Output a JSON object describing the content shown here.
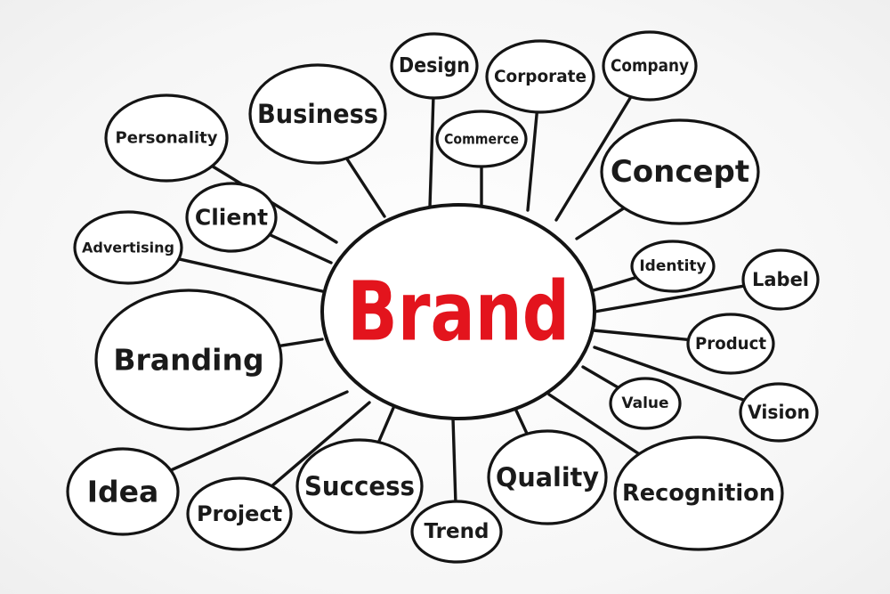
{
  "center": {
    "label": "Brand",
    "color": "#e3141d"
  },
  "nodes": [
    {
      "id": "design",
      "label": "Design"
    },
    {
      "id": "corporate",
      "label": "Corporate"
    },
    {
      "id": "company",
      "label": "Company"
    },
    {
      "id": "business",
      "label": "Business"
    },
    {
      "id": "personality",
      "label": "Personality"
    },
    {
      "id": "commerce",
      "label": "Commerce"
    },
    {
      "id": "concept",
      "label": "Concept"
    },
    {
      "id": "client",
      "label": "Client"
    },
    {
      "id": "advertising",
      "label": "Advertising"
    },
    {
      "id": "identity",
      "label": "Identity"
    },
    {
      "id": "label",
      "label": "Label"
    },
    {
      "id": "branding",
      "label": "Branding"
    },
    {
      "id": "product",
      "label": "Product"
    },
    {
      "id": "value",
      "label": "Value"
    },
    {
      "id": "vision",
      "label": "Vision"
    },
    {
      "id": "idea",
      "label": "Idea"
    },
    {
      "id": "success",
      "label": "Success"
    },
    {
      "id": "quality",
      "label": "Quality"
    },
    {
      "id": "recognition",
      "label": "Recognition"
    },
    {
      "id": "project",
      "label": "Project"
    },
    {
      "id": "trend",
      "label": "Trend"
    }
  ]
}
